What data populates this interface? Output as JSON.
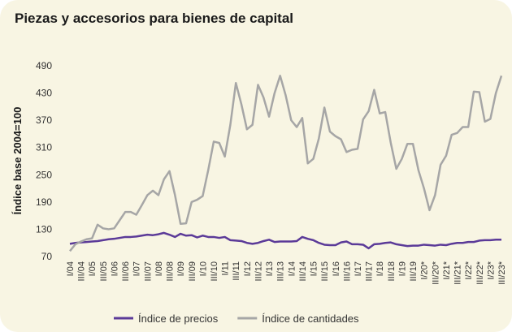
{
  "chart_data": {
    "type": "line",
    "title": "Piezas y accesorios para bienes de capital",
    "y_label": "Índice base 2004=100",
    "categories": [
      "I/04",
      null,
      "III/04",
      null,
      "I/05",
      null,
      "III/05",
      null,
      "I/06",
      null,
      "III/06",
      null,
      "I/07",
      null,
      "III/07",
      null,
      "I/08",
      null,
      "III/08",
      null,
      "I/09",
      null,
      "III/09",
      null,
      "I/10",
      null,
      "III/10",
      null,
      "I/11",
      null,
      "III/11",
      null,
      "I/12",
      null,
      "III/12",
      null,
      "I/13",
      null,
      "III/13",
      null,
      "I/14",
      null,
      "III/14",
      null,
      "I/15",
      null,
      "III/15",
      null,
      "I/16",
      null,
      "III/16",
      null,
      "I/17",
      null,
      "III/17",
      null,
      "I/18",
      null,
      "III/18",
      null,
      "I/19",
      null,
      "III/19",
      null,
      "I/20*",
      null,
      "III/20*",
      null,
      "I/21*",
      null,
      "III/21*",
      null,
      "I/22*",
      null,
      "III/22*",
      null,
      "I/23*",
      null,
      "III/23*"
    ],
    "series": [
      {
        "name": "Índice de precios",
        "color": "#5b3a98",
        "values": [
          98,
          100,
          101,
          102,
          103,
          104,
          106,
          108,
          109,
          111,
          113,
          113,
          114,
          116,
          118,
          117,
          119,
          122,
          118,
          113,
          120,
          116,
          117,
          112,
          116,
          113,
          113,
          111,
          113,
          106,
          105,
          104,
          100,
          98,
          100,
          104,
          107,
          102,
          103,
          103,
          103,
          104,
          113,
          109,
          106,
          100,
          96,
          95,
          95,
          101,
          103,
          97,
          97,
          96,
          88,
          97,
          98,
          100,
          101,
          97,
          95,
          93,
          94,
          94,
          96,
          95,
          94,
          96,
          95,
          98,
          100,
          100,
          102,
          102,
          105,
          106,
          106,
          107,
          107
        ]
      },
      {
        "name": "Índice de cantidades",
        "color": "#a6a6a6",
        "values": [
          82,
          97,
          103,
          108,
          110,
          140,
          132,
          130,
          132,
          150,
          168,
          168,
          162,
          183,
          205,
          215,
          205,
          240,
          258,
          205,
          142,
          143,
          190,
          195,
          203,
          260,
          323,
          320,
          290,
          360,
          452,
          405,
          350,
          360,
          448,
          420,
          378,
          430,
          468,
          425,
          370,
          355,
          375,
          275,
          285,
          330,
          398,
          345,
          335,
          328,
          300,
          305,
          307,
          372,
          390,
          437,
          385,
          388,
          320,
          263,
          285,
          318,
          318,
          260,
          220,
          172,
          205,
          272,
          292,
          338,
          342,
          355,
          355,
          433,
          432,
          367,
          373,
          430,
          468
        ]
      }
    ],
    "ylim": [
      70,
      490
    ],
    "yticks": [
      70,
      130,
      190,
      250,
      310,
      370,
      430,
      490
    ],
    "grid": false,
    "legend": "bottom"
  }
}
